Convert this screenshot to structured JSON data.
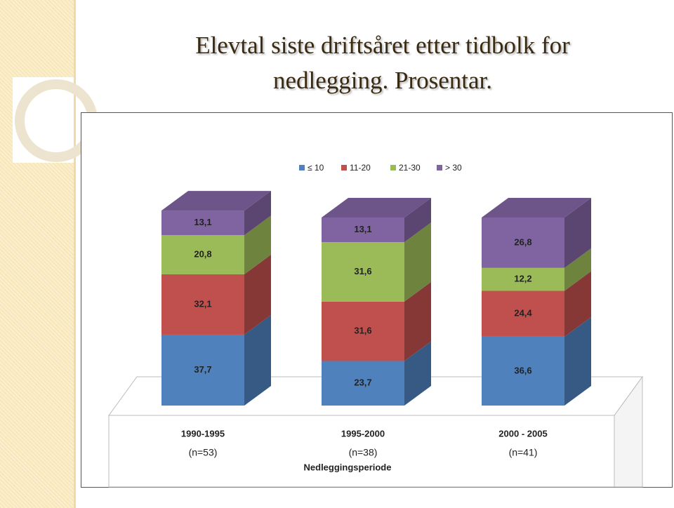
{
  "chart_data": {
    "type": "bar3d-stacked",
    "title": "Elevtal siste driftsåret etter tidbolk for nedlegging. Prosentar.",
    "categories": [
      "1990-1995",
      "1995-2000",
      "2000 - 2005"
    ],
    "category_notes": [
      "(n=53)",
      "(n=38)",
      "(n=41)"
    ],
    "x_label": "Nedleggingsperiode",
    "legend": "top",
    "series": [
      {
        "name": "≤ 10",
        "color": "#4f81bd",
        "values": [
          37.7,
          23.7,
          36.6
        ],
        "value_labels": [
          "37,7",
          "23,7",
          "36,6"
        ]
      },
      {
        "name": "11-20",
        "color": "#c0504d",
        "values": [
          32.1,
          31.6,
          24.4
        ],
        "value_labels": [
          "32,1",
          "31,6",
          "24,4"
        ]
      },
      {
        "name": "21-30",
        "color": "#9bbb59",
        "values": [
          20.8,
          31.6,
          12.2
        ],
        "value_labels": [
          "20,8",
          "31,6",
          "12,2"
        ]
      },
      {
        "name": "> 30",
        "color": "#8064a2",
        "values": [
          13.1,
          13.1,
          26.8
        ],
        "value_labels": [
          "13,1",
          "13,1",
          "26,8"
        ]
      }
    ]
  }
}
